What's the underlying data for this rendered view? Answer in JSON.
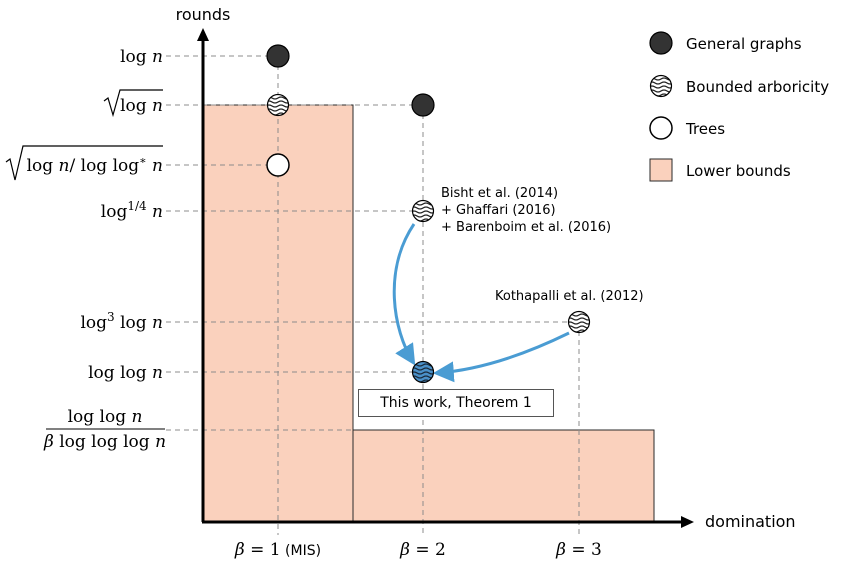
{
  "colors": {
    "lower_bound_fill": "#fad1bd",
    "lower_bound_stroke": "#2a2a2a",
    "general_graph_fill": "#333333",
    "tree_fill": "#ffffff",
    "this_work_fill": "#4a90c8",
    "arrow": "#4a9cd3",
    "guide_line": "#8c8c8c"
  },
  "axes": {
    "y_label": "rounds",
    "x_label": "domination"
  },
  "x_ticks": [
    {
      "id": "beta1",
      "math": "β = 1",
      "suffix": " (MIS)"
    },
    {
      "id": "beta2",
      "math": "β = 2",
      "suffix": ""
    },
    {
      "id": "beta3",
      "math": "β = 3",
      "suffix": ""
    }
  ],
  "y_ticks": [
    {
      "id": "logn",
      "label": "log n"
    },
    {
      "id": "sqrtlogn",
      "label": "√log n"
    },
    {
      "id": "sqrtstar",
      "label": "√(log n / log log* n)"
    },
    {
      "id": "log14",
      "label": "log^{1/4} n"
    },
    {
      "id": "log3loglog",
      "label": "log^3 log n"
    },
    {
      "id": "loglog",
      "label": "log log n"
    },
    {
      "id": "frac",
      "label": "log log n / β log log log n",
      "numerator": "log log n",
      "denominator": "β log log log n"
    }
  ],
  "legend": [
    {
      "id": "general",
      "marker": "filled-dark",
      "label": "General graphs"
    },
    {
      "id": "bounded",
      "marker": "wavy",
      "label": "Bounded arboricity"
    },
    {
      "id": "trees",
      "marker": "hollow",
      "label": "Trees"
    },
    {
      "id": "lower",
      "marker": "square",
      "label": "Lower bounds"
    }
  ],
  "points": [
    {
      "id": "p1",
      "x": "beta1",
      "y": "logn",
      "marker": "filled-dark"
    },
    {
      "id": "p2",
      "x": "beta1",
      "y": "sqrtlogn",
      "marker": "wavy"
    },
    {
      "id": "p3",
      "x": "beta2",
      "y": "sqrtlogn",
      "marker": "filled-dark"
    },
    {
      "id": "p4",
      "x": "beta1",
      "y": "sqrtstar",
      "marker": "hollow"
    },
    {
      "id": "p5",
      "x": "beta2",
      "y": "log14",
      "marker": "wavy"
    },
    {
      "id": "p6",
      "x": "beta3",
      "y": "log3loglog",
      "marker": "wavy"
    },
    {
      "id": "p7",
      "x": "beta2",
      "y": "loglog",
      "marker": "wavy-blue"
    }
  ],
  "annotations": {
    "citation_2014": [
      "Bisht et al. (2014)",
      "+ Ghaffari (2016)",
      "+ Barenboim et al. (2016)"
    ],
    "citation_2012": "Kothapalli et al. (2012)",
    "this_work": "This work, Theorem 1"
  }
}
